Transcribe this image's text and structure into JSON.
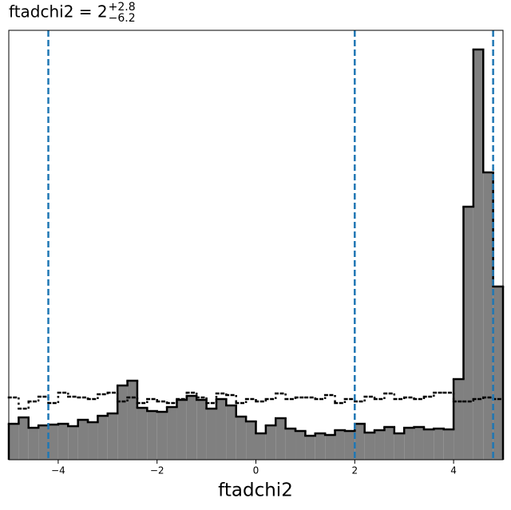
{
  "chart_data": {
    "type": "histogram",
    "title": {
      "text": "ftadchi2 = 2",
      "upper": "+2.8",
      "lower": "−6.2"
    },
    "xlabel": "ftadchi2",
    "xlim": [
      -5,
      5
    ],
    "xticks": [
      {
        "value": -4,
        "label": "−4"
      },
      {
        "value": -2,
        "label": "−2"
      },
      0,
      2,
      4
    ],
    "ylim": [
      0,
      538
    ],
    "bins": [
      -5,
      -4.8,
      -4.6,
      -4.4,
      -4.2,
      -4,
      -3.8,
      -3.6,
      -3.4,
      -3.2,
      -3,
      -2.8,
      -2.6,
      -2.4,
      -2.2,
      -2,
      -1.8,
      -1.6,
      -1.4,
      -1.2,
      -1,
      -0.8,
      -0.6,
      -0.4,
      -0.2,
      0,
      0.2,
      0.4,
      0.6,
      0.8,
      1,
      1.2,
      1.4,
      1.6,
      1.8,
      2,
      2.2,
      2.4,
      2.6,
      2.8,
      3,
      3.2,
      3.4,
      3.6,
      3.8,
      4,
      4.2,
      4.4,
      4.6,
      4.8,
      5
    ],
    "series": [
      {
        "color": "#808080",
        "values": [
          45,
          53,
          40,
          43,
          44,
          45,
          42,
          50,
          47,
          55,
          58,
          93,
          99,
          65,
          61,
          60,
          66,
          75,
          80,
          75,
          64,
          76,
          68,
          54,
          48,
          33,
          43,
          52,
          39,
          36,
          30,
          33,
          31,
          37,
          36,
          45,
          34,
          37,
          41,
          33,
          40,
          41,
          38,
          39,
          38,
          101,
          317,
          514,
          360,
          217
        ]
      },
      {
        "color": "#000000",
        "values": [
          78,
          64,
          73,
          79,
          71,
          84,
          79,
          78,
          76,
          82,
          84,
          73,
          78,
          71,
          76,
          73,
          71,
          76,
          84,
          78,
          71,
          83,
          81,
          71,
          76,
          73,
          76,
          83,
          76,
          78,
          78,
          76,
          81,
          71,
          76,
          73,
          79,
          76,
          83,
          76,
          78,
          76,
          79,
          84,
          84,
          73,
          73,
          76,
          78,
          76
        ]
      }
    ],
    "quantiles": [
      -4.2,
      2,
      4.8
    ],
    "quantile_color": "#1f77b4"
  }
}
